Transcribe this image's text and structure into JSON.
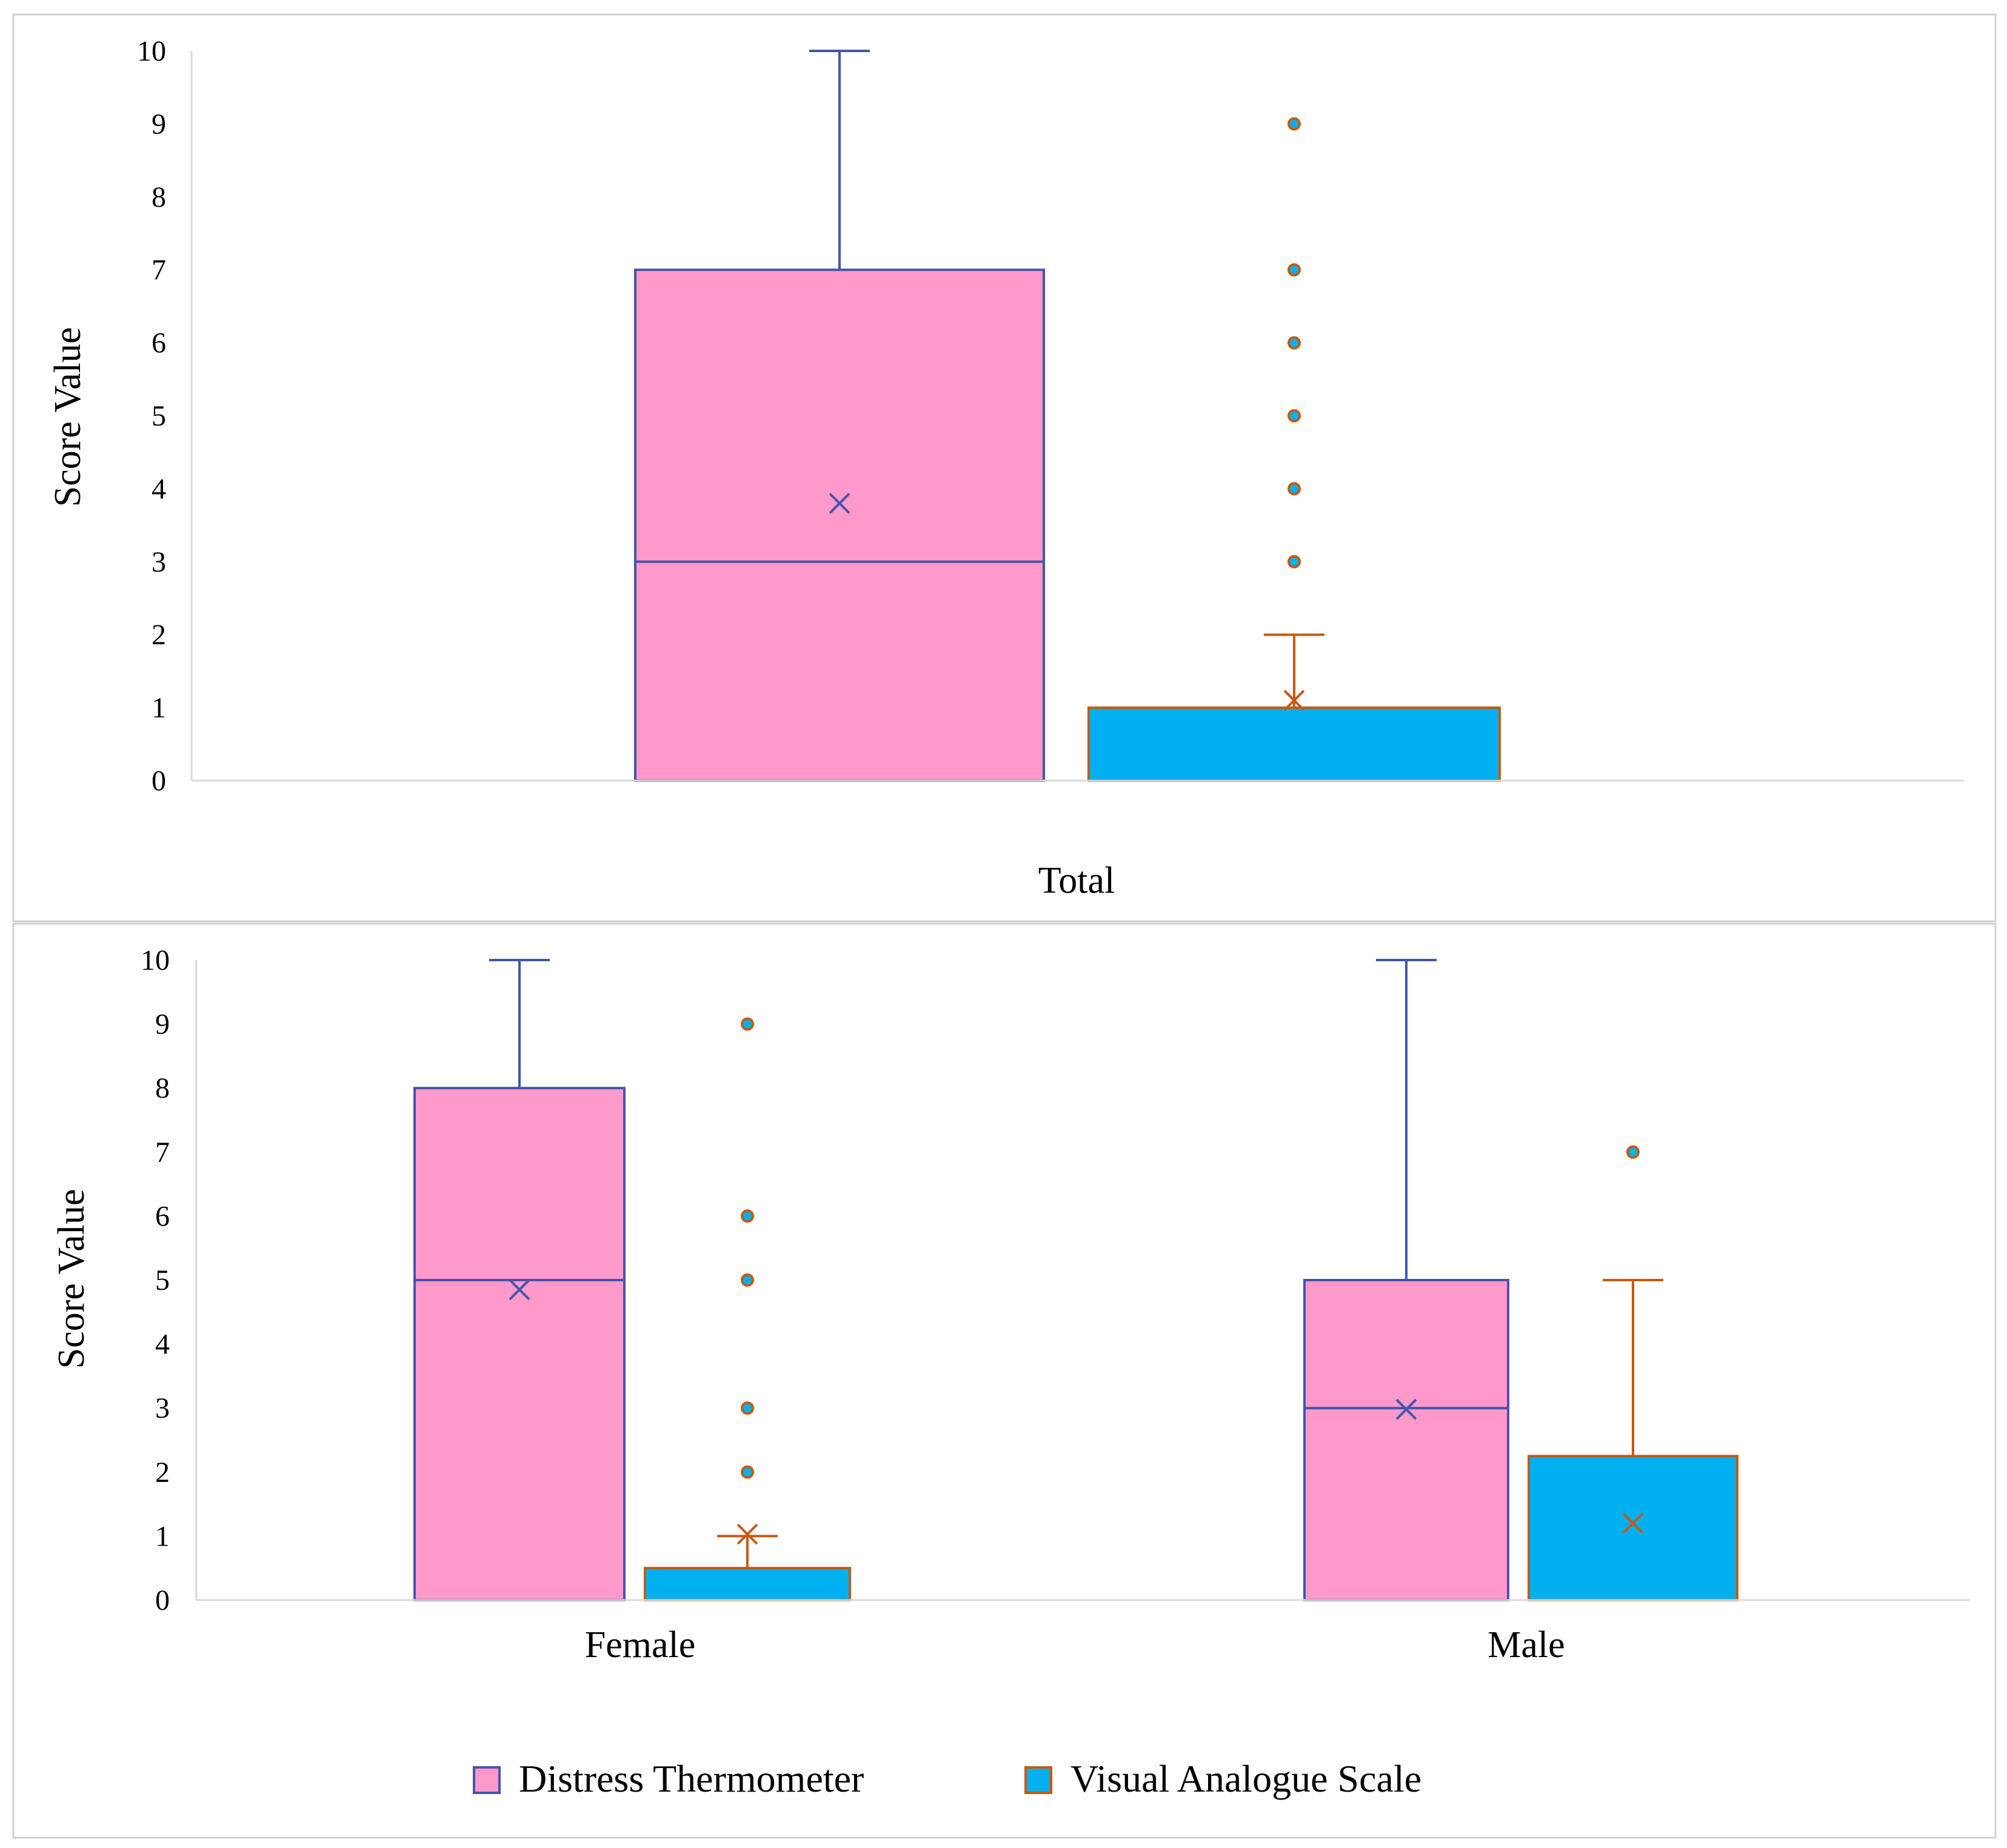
{
  "colors": {
    "dt_fill": "#FF99CC",
    "dt_stroke": "#4455AA",
    "vas_fill": "#00B0F0",
    "vas_stroke": "#C55A11",
    "axis": "#D9D9D9",
    "frame": "#D0D0D0"
  },
  "legend": {
    "items": [
      {
        "label": "Distress Thermometer",
        "series": "dt"
      },
      {
        "label": "Visual Analogue Scale",
        "series": "vas"
      }
    ]
  },
  "chart_data": [
    {
      "type": "boxplot",
      "title": "",
      "xlabel": "",
      "ylabel": "Score Value",
      "ylim": [
        0,
        10
      ],
      "yticks": [
        "0",
        "1",
        "2",
        "3",
        "4",
        "5",
        "6",
        "7",
        "8",
        "9",
        "10"
      ],
      "categories": [
        "Total"
      ],
      "series": [
        {
          "key": "dt",
          "name": "Distress Thermometer",
          "boxes": [
            {
              "min": 0,
              "q1": 0,
              "median": 3,
              "q3": 7,
              "max": 10,
              "mean": 3.8,
              "outliers": []
            }
          ]
        },
        {
          "key": "vas",
          "name": "Visual Analogue Scale",
          "boxes": [
            {
              "min": 0,
              "q1": 0,
              "median": 0,
              "q3": 1,
              "max": 2,
              "mean": 1.1,
              "outliers": [
                3,
                4,
                5,
                6,
                7,
                9
              ]
            }
          ]
        }
      ]
    },
    {
      "type": "boxplot",
      "title": "",
      "xlabel": "",
      "ylabel": "Score Value",
      "ylim": [
        0,
        10
      ],
      "yticks": [
        "0",
        "1",
        "2",
        "3",
        "4",
        "5",
        "6",
        "7",
        "8",
        "9",
        "10"
      ],
      "categories": [
        "Female",
        "Male"
      ],
      "series": [
        {
          "key": "dt",
          "name": "Distress Thermometer",
          "boxes": [
            {
              "min": 0,
              "q1": 0,
              "median": 5,
              "q3": 8,
              "max": 10,
              "mean": 4.85,
              "outliers": []
            },
            {
              "min": 0,
              "q1": 0,
              "median": 3,
              "q3": 5,
              "max": 10,
              "mean": 2.98,
              "outliers": []
            }
          ]
        },
        {
          "key": "vas",
          "name": "Visual Analogue Scale",
          "boxes": [
            {
              "min": 0,
              "q1": 0,
              "median": 0,
              "q3": 0.5,
              "max": 1,
              "mean": 1.03,
              "outliers": [
                2,
                3,
                5,
                6,
                9
              ]
            },
            {
              "min": 0,
              "q1": 0,
              "median": 0,
              "q3": 2.25,
              "max": 5,
              "mean": 1.2,
              "outliers": [
                7
              ]
            }
          ]
        }
      ]
    }
  ]
}
